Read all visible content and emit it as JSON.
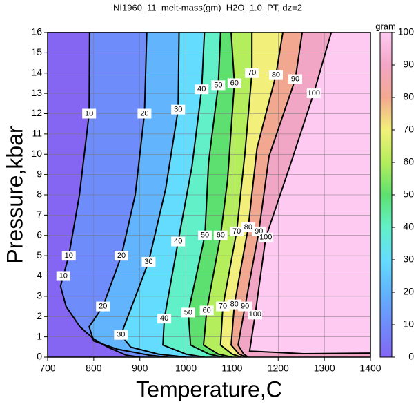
{
  "chart_data": {
    "type": "contour",
    "title": "NI1960_11_melt-mass(gm)_H2O_1.0_PT, dz=2",
    "xlabel": "Temperature,C",
    "ylabel": "Pressure,kbar",
    "xlim": [
      700,
      1400
    ],
    "xticks": [
      700,
      800,
      900,
      1000,
      1100,
      1200,
      1300,
      1400
    ],
    "ylim": [
      0,
      16
    ],
    "yticks": [
      0,
      1,
      2,
      3,
      4,
      5,
      6,
      7,
      8,
      9,
      10,
      11,
      12,
      13,
      14,
      15,
      16
    ],
    "grid": true,
    "zlabel": "gram",
    "zlim": [
      0,
      100
    ],
    "zticks": [
      0,
      10,
      20,
      30,
      40,
      50,
      60,
      70,
      80,
      90,
      100
    ],
    "colorscale": [
      "#8466f2",
      "#6f8cfb",
      "#62b4fd",
      "#64dcfd",
      "#62f0c8",
      "#5ee070",
      "#b4ee5c",
      "#f2f07a",
      "#f2a890",
      "#f2a6c6",
      "#ffcaf2"
    ],
    "contours": [
      {
        "level": 10,
        "x": [
          791,
          790,
          769,
          746,
          734,
          728,
          740,
          770,
          800,
          830,
          870,
          900
        ],
        "y": [
          16,
          12,
          8,
          5,
          4,
          3.5,
          2.5,
          1.5,
          0.9,
          0.5,
          0.1,
          0
        ]
      },
      {
        "level": 20,
        "x": [
          915,
          910,
          890,
          860,
          820,
          790,
          800,
          850,
          920,
          960
        ],
        "y": [
          16,
          12,
          8,
          5,
          2.5,
          1.5,
          0.8,
          0.4,
          0.1,
          0
        ]
      },
      {
        "level": 30,
        "x": [
          985,
          983,
          956,
          919,
          859,
          880,
          940,
          1000
        ],
        "y": [
          16,
          12.2,
          8.3,
          4.7,
          1.1,
          0.5,
          0.15,
          0
        ]
      },
      {
        "level": 40,
        "x": [
          1040,
          1034,
          1013,
          983,
          953,
          950,
          1000,
          1040
        ],
        "y": [
          16,
          13.2,
          9.4,
          5.7,
          1.9,
          0.6,
          0.15,
          0
        ]
      },
      {
        "level": 50,
        "x": [
          1075,
          1070,
          1049,
          1041,
          1005,
          1010,
          1050,
          1080
        ],
        "y": [
          16,
          13.4,
          9.6,
          6,
          2.2,
          0.6,
          0.15,
          0
        ]
      },
      {
        "level": 60,
        "x": [
          1098,
          1105,
          1090,
          1075,
          1045,
          1038,
          1070,
          1100
        ],
        "y": [
          16,
          13.5,
          8.7,
          6,
          2.3,
          0.6,
          0.15,
          0
        ]
      },
      {
        "level": 70,
        "x": [
          1143,
          1143,
          1128,
          1110,
          1080,
          1075,
          1100,
          1120
        ],
        "y": [
          16,
          14,
          10.1,
          6.2,
          2.5,
          0.6,
          0.15,
          0
        ]
      },
      {
        "level": 80,
        "x": [
          1210,
          1195,
          1154,
          1135,
          1105,
          1098,
          1115,
          1130
        ],
        "y": [
          16,
          13.9,
          10.3,
          6.4,
          2.6,
          0.6,
          0.15,
          0
        ]
      },
      {
        "level": 90,
        "x": [
          1252,
          1237,
          1180,
          1158,
          1128,
          1113,
          1125,
          1135
        ],
        "y": [
          16,
          13.7,
          9.9,
          6.2,
          2.5,
          0.6,
          0.15,
          0
        ]
      },
      {
        "level": 100,
        "x": [
          1315,
          1277,
          1225,
          1173,
          1150,
          1138,
          1255,
          1400
        ],
        "y": [
          16,
          13,
          9.4,
          5.9,
          2.1,
          0.3,
          0.17,
          0.2
        ]
      }
    ]
  }
}
